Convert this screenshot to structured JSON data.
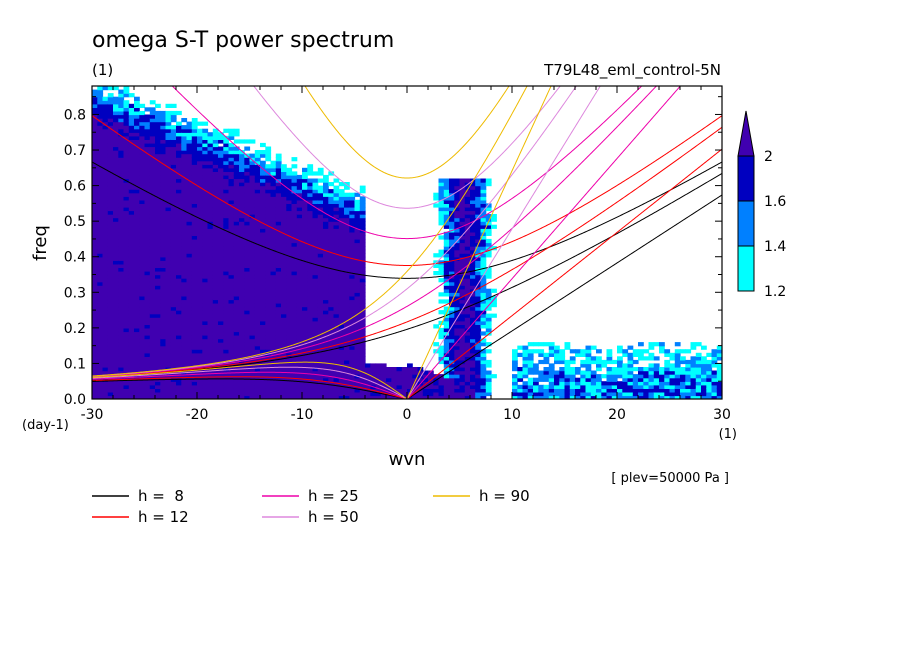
{
  "chart_data": {
    "type": "heatmap",
    "title": "omega S-T power spectrum",
    "subtitle_left": "(1)",
    "subtitle_right": "T79L48_eml_control-5N",
    "xlabel": "wvn",
    "ylabel": "freq",
    "x_unit": "(1)",
    "y_unit": "(day-1)",
    "annotation": "[ plev=50000 Pa ]",
    "xlim": [
      -30,
      30
    ],
    "ylim": [
      0,
      0.88
    ],
    "x_ticks": [
      -30,
      -20,
      -10,
      0,
      10,
      20,
      30
    ],
    "x_tick_labels": [
      "-30",
      "-20",
      "-10",
      "0",
      "10",
      "20",
      "30"
    ],
    "y_ticks": [
      0.0,
      0.1,
      0.2,
      0.3,
      0.4,
      0.5,
      0.6,
      0.7,
      0.8
    ],
    "y_tick_labels": [
      "0.0",
      "0.1",
      "0.2",
      "0.3",
      "0.4",
      "0.5",
      "0.6",
      "0.7",
      "0.8"
    ],
    "colorbar": {
      "levels": [
        1.2,
        1.4,
        1.6,
        2
      ],
      "labels": [
        "1.2",
        "1.4",
        "1.6",
        "2"
      ],
      "colors": [
        "#00ffff",
        "#0080ff",
        "#0000c0",
        "#4000b0"
      ]
    },
    "dispersion_curves": [
      {
        "name": "h =  8",
        "h": 8,
        "color": "#000000"
      },
      {
        "name": "h = 12",
        "h": 12,
        "color": "#ff0000"
      },
      {
        "name": "h = 25",
        "h": 25,
        "color": "#ee00aa"
      },
      {
        "name": "h = 50",
        "h": 50,
        "color": "#dd88dd"
      },
      {
        "name": "h = 90",
        "h": 90,
        "color": "#eebb00"
      }
    ]
  }
}
